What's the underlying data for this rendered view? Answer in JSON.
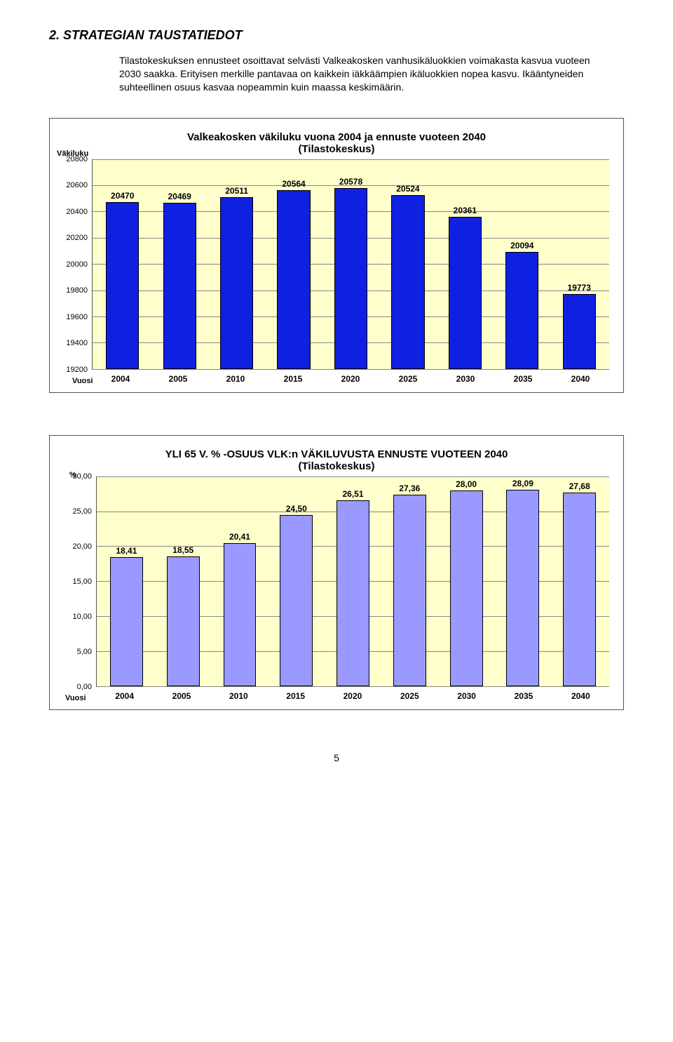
{
  "section_heading": "2. STRATEGIAN TAUSTATIEDOT",
  "intro_text": "Tilastokeskuksen ennusteet osoittavat selvästi Valkeakosken vanhusikäluokkien voimakasta kasvua vuoteen 2030 saakka. Erityisen merkille pantavaa on kaikkein iäkkäämpien ikäluokkien nopea kasvu. Ikääntyneiden suhteellinen osuus kasvaa nopeammin kuin maassa keskimäärin.",
  "page_number": "5",
  "chart1": {
    "type": "bar",
    "title_line1": "Valkeakosken väkiluku vuona 2004 ja ennuste vuoteen 2040",
    "title_line2": "(Tilastokeskus)",
    "y_label": "Väkiluku",
    "x_label": "Vuosi",
    "background_color": "#ffffcc",
    "bar_color": "#1020e0",
    "bar_border": "#000000",
    "grid_color": "#888888",
    "ymin": 19200,
    "ymax": 20800,
    "ytick_step": 200,
    "yticks": [
      "20800",
      "20600",
      "20400",
      "20200",
      "20000",
      "19800",
      "19600",
      "19400",
      "19200"
    ],
    "categories": [
      "2004",
      "2005",
      "2010",
      "2015",
      "2020",
      "2025",
      "2030",
      "2035",
      "2040"
    ],
    "values": [
      20470,
      20469,
      20511,
      20564,
      20578,
      20524,
      20361,
      20094,
      19773
    ],
    "value_labels": [
      "20470",
      "20469",
      "20511",
      "20564",
      "20578",
      "20524",
      "20361",
      "20094",
      "19773"
    ]
  },
  "chart2": {
    "type": "bar",
    "title_line1": "YLI 65 V. % -OSUUS VLK:n VÄKILUVUSTA ENNUSTE VUOTEEN 2040",
    "title_line2": "(Tilastokeskus)",
    "y_label": "%",
    "x_label": "Vuosi",
    "background_color": "#ffffcc",
    "bar_color": "#9999ff",
    "bar_border": "#000000",
    "grid_color": "#888888",
    "ymin": 0,
    "ymax": 30,
    "ytick_step": 5,
    "yticks": [
      "30,00",
      "25,00",
      "20,00",
      "15,00",
      "10,00",
      "5,00",
      "0,00"
    ],
    "categories": [
      "2004",
      "2005",
      "2010",
      "2015",
      "2020",
      "2025",
      "2030",
      "2035",
      "2040"
    ],
    "values": [
      18.41,
      18.55,
      20.41,
      24.5,
      26.51,
      27.36,
      28.0,
      28.09,
      27.68
    ],
    "value_labels": [
      "18,41",
      "18,55",
      "20,41",
      "24,50",
      "26,51",
      "27,36",
      "28,00",
      "28,09",
      "27,68"
    ]
  }
}
